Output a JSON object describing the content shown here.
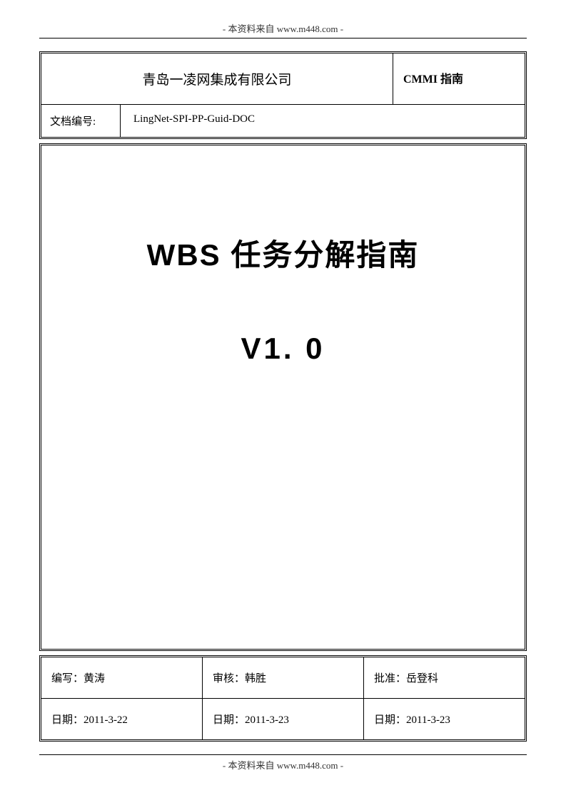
{
  "header": {
    "watermark": "- 本资料来自 www.m448.com -"
  },
  "footer": {
    "watermark": "- 本资料来自 www.m448.com -"
  },
  "top_table": {
    "company": "青岛一凌网集成有限公司",
    "doc_type": "CMMI 指南",
    "docid_label": "文档编号:",
    "docid_value": "LingNet-SPI-PP-Guid-DOC"
  },
  "title_block": {
    "main": "WBS 任务分解指南",
    "version": "V1. 0"
  },
  "sign_table": {
    "row1": {
      "author": "编写：黄涛",
      "reviewer": "审核：韩胜",
      "approver": "批准：岳登科"
    },
    "row2": {
      "date_author": "日期：2011-3-22",
      "date_reviewer": "日期：2011-3-23",
      "date_approver": "日期：2011-3-23"
    }
  },
  "colors": {
    "background": "#ffffff",
    "text": "#000000",
    "border": "#000000"
  },
  "typography": {
    "body_font": "SimSun",
    "title_font": "SimHei",
    "title_fontsize_pt": 32,
    "body_fontsize_pt": 11,
    "header_fontsize_pt": 10
  }
}
